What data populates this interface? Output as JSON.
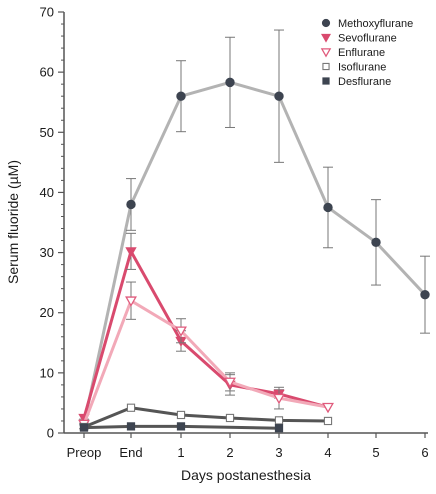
{
  "chart_data": {
    "type": "line",
    "xlabel": "Days postanesthesia",
    "ylabel": "Serum fluoride (µM)",
    "categories": [
      "Preop",
      "End",
      "1",
      "2",
      "3",
      "4",
      "5",
      "6"
    ],
    "ylim": [
      0,
      70
    ],
    "y_ticks": [
      0,
      10,
      20,
      30,
      40,
      50,
      60,
      70
    ],
    "grid": false,
    "legend_position": "top-right",
    "series": [
      {
        "name": "Methoxyflurane",
        "marker": "circle-filled",
        "color": "#3d4450",
        "line_color": "#b3b3b3",
        "values": [
          1.5,
          38,
          56,
          58.3,
          56,
          37.5,
          31.7,
          23
        ],
        "error": [
          0.8,
          4.3,
          5.9,
          7.5,
          11,
          6.7,
          7.1,
          6.4
        ]
      },
      {
        "name": "Sevoflurane",
        "marker": "triangle-down-filled",
        "color": "#d94a6e",
        "line_color": "#d94a6e",
        "values": [
          2.5,
          30.2,
          15.3,
          8,
          6.5,
          4.3,
          null,
          null
        ],
        "error": [
          0,
          3,
          1.7,
          1.7,
          0.7,
          0,
          null,
          null
        ]
      },
      {
        "name": "Enflurane",
        "marker": "triangle-down-open",
        "color": "#e05a7c",
        "line_color": "#f2a9b8",
        "values": [
          1.5,
          22,
          17,
          8.5,
          5.8,
          4.3,
          null,
          null
        ],
        "error": [
          0,
          3.1,
          2,
          1.5,
          1.8,
          0,
          null,
          null
        ]
      },
      {
        "name": "Isoflurane",
        "marker": "square-open",
        "color": "#555555",
        "line_color": "#555555",
        "values": [
          1,
          4.2,
          3,
          2.5,
          2.1,
          2,
          null,
          null
        ],
        "error": [
          0,
          0,
          0,
          0,
          0,
          0,
          null,
          null
        ]
      },
      {
        "name": "Desflurane",
        "marker": "square-filled",
        "color": "#3d4450",
        "line_color": "#555555",
        "values": [
          0.9,
          1.1,
          1.1,
          null,
          0.8,
          null,
          null,
          null
        ],
        "error": [
          0,
          0,
          0,
          null,
          0,
          null,
          null,
          null
        ]
      }
    ]
  }
}
